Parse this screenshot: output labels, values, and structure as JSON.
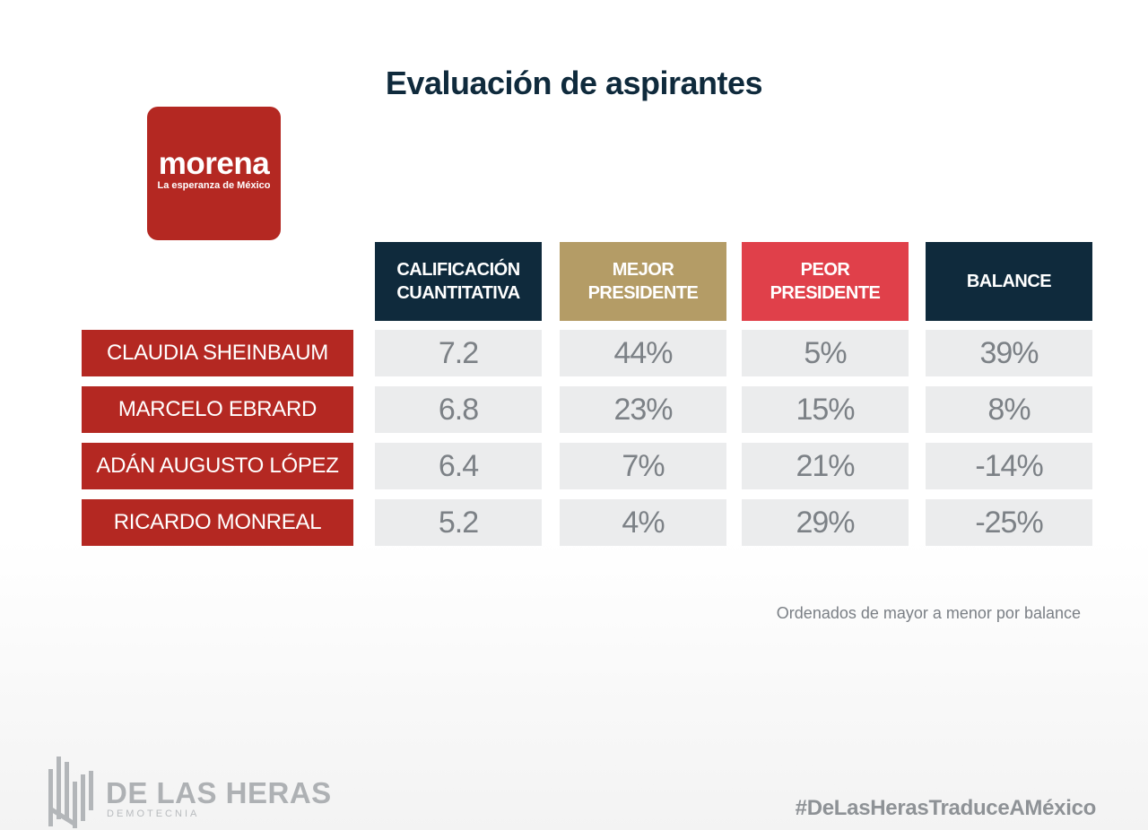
{
  "chart_data": {
    "type": "table",
    "title": "Evaluación de aspirantes",
    "columns": [
      "CALIFICACIÓN\nCUANTITATIVA",
      "MEJOR\nPRESIDENTE",
      "PEOR\nPRESIDENTE",
      "BALANCE"
    ],
    "column_colors": [
      "#0f2a3c",
      "#b49c66",
      "#e0404a",
      "#0f2a3c"
    ],
    "rows": [
      {
        "label": "CLAUDIA SHEINBAUM",
        "values": [
          "7.2",
          "44%",
          "5%",
          "39%"
        ]
      },
      {
        "label": "MARCELO EBRARD",
        "values": [
          "6.8",
          "23%",
          "15%",
          "8%"
        ]
      },
      {
        "label": "ADÁN AUGUSTO LÓPEZ",
        "values": [
          "6.4",
          "7%",
          "21%",
          "-14%"
        ]
      },
      {
        "label": "RICARDO MONREAL",
        "values": [
          "5.2",
          "4%",
          "29%",
          "-25%"
        ]
      }
    ],
    "note": "Ordenados de mayor a menor por balance"
  },
  "logo": {
    "word": "morena",
    "tagline": "La esperanza de México",
    "color": "#b42822"
  },
  "brand": {
    "name": "DE LAS HERAS",
    "sub": "DEMOTECNIA"
  },
  "hashtag": "#DeLasHerasTraduceAMéxico"
}
